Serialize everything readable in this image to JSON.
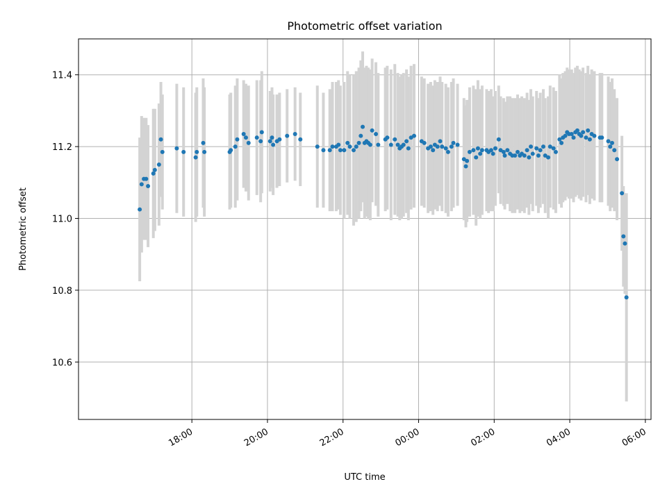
{
  "chart_data": {
    "type": "scatter",
    "title": "Photometric offset variation",
    "xlabel": "UTC time",
    "ylabel": "Photometric offset",
    "x_axis": {
      "kind": "time",
      "tick_labels": [
        "18:00",
        "20:00",
        "22:00",
        "00:00",
        "02:00",
        "04:00",
        "06:00"
      ],
      "tick_hours": [
        18,
        20,
        22,
        24,
        26,
        28,
        30
      ],
      "xlim_hours": [
        15.0,
        30.15
      ]
    },
    "y_axis": {
      "tick_labels": [
        "10.6",
        "10.8",
        "11.0",
        "11.2",
        "11.4"
      ],
      "ticks": [
        10.6,
        10.8,
        11.0,
        11.2,
        11.4
      ],
      "ylim": [
        10.44,
        11.5
      ]
    },
    "grid": true,
    "colors": {
      "points": "#1f77b4",
      "errorbars": "#d3d3d3",
      "grid": "#b0b0b0"
    },
    "series": [
      {
        "x": [
          16.62,
          16.67,
          16.73,
          16.79,
          16.84,
          16.98,
          17.02,
          17.13,
          17.18,
          17.22,
          17.6,
          17.78,
          18.1,
          18.13,
          18.3,
          18.33,
          19.0,
          19.03,
          19.15,
          19.2,
          19.37,
          19.43,
          19.5,
          19.72,
          19.82,
          19.85,
          20.07,
          20.12,
          20.15,
          20.25,
          20.32,
          20.52,
          20.73,
          20.87,
          21.32,
          21.48,
          21.65,
          21.72,
          21.82,
          21.88,
          21.93,
          22.03,
          22.12,
          22.18,
          22.28,
          22.35,
          22.42,
          22.47,
          22.52,
          22.57,
          22.62,
          22.67,
          22.72,
          22.77,
          22.87,
          22.93,
          23.12,
          23.17,
          23.27,
          23.37,
          23.45,
          23.5,
          23.55,
          23.6,
          23.68,
          23.73,
          23.8,
          23.88,
          24.08,
          24.15,
          24.25,
          24.32,
          24.38,
          24.43,
          24.5,
          24.57,
          24.62,
          24.72,
          24.78,
          24.87,
          24.92,
          25.03,
          25.2,
          25.25,
          25.28,
          25.35,
          25.45,
          25.52,
          25.57,
          25.63,
          25.68,
          25.8,
          25.85,
          25.92,
          25.97,
          26.03,
          26.12,
          26.17,
          26.25,
          26.28,
          26.35,
          26.42,
          26.48,
          26.55,
          26.62,
          26.68,
          26.73,
          26.8,
          26.87,
          26.92,
          26.97,
          27.02,
          27.12,
          27.17,
          27.22,
          27.3,
          27.35,
          27.43,
          27.48,
          27.57,
          27.63,
          27.73,
          27.78,
          27.82,
          27.88,
          27.93,
          27.98,
          28.05,
          28.1,
          28.15,
          28.2,
          28.25,
          28.3,
          28.35,
          28.43,
          28.48,
          28.53,
          28.58,
          28.65,
          28.8,
          28.85,
          29.02,
          29.07,
          29.12,
          29.18,
          29.25,
          29.38,
          29.42,
          29.46,
          29.5
        ],
        "y": [
          11.025,
          11.095,
          11.11,
          11.11,
          11.09,
          11.125,
          11.135,
          11.15,
          11.22,
          11.185,
          11.195,
          11.185,
          11.17,
          11.185,
          11.21,
          11.185,
          11.185,
          11.19,
          11.2,
          11.22,
          11.235,
          11.225,
          11.21,
          11.225,
          11.215,
          11.24,
          11.215,
          11.225,
          11.205,
          11.215,
          11.22,
          11.23,
          11.235,
          11.22,
          11.2,
          11.19,
          11.19,
          11.2,
          11.2,
          11.205,
          11.19,
          11.19,
          11.21,
          11.2,
          11.19,
          11.2,
          11.21,
          11.23,
          11.255,
          11.21,
          11.215,
          11.21,
          11.205,
          11.245,
          11.235,
          11.205,
          11.22,
          11.225,
          11.205,
          11.22,
          11.205,
          11.195,
          11.2,
          11.205,
          11.215,
          11.195,
          11.225,
          11.23,
          11.215,
          11.21,
          11.195,
          11.2,
          11.19,
          11.205,
          11.2,
          11.215,
          11.2,
          11.195,
          11.185,
          11.2,
          11.21,
          11.205,
          11.165,
          11.145,
          11.16,
          11.185,
          11.19,
          11.17,
          11.195,
          11.18,
          11.19,
          11.19,
          11.185,
          11.19,
          11.18,
          11.195,
          11.22,
          11.19,
          11.185,
          11.175,
          11.19,
          11.18,
          11.175,
          11.175,
          11.185,
          11.175,
          11.18,
          11.175,
          11.19,
          11.17,
          11.2,
          11.18,
          11.195,
          11.175,
          11.19,
          11.2,
          11.175,
          11.17,
          11.2,
          11.195,
          11.185,
          11.22,
          11.21,
          11.225,
          11.23,
          11.24,
          11.235,
          11.235,
          11.225,
          11.24,
          11.245,
          11.235,
          11.23,
          11.24,
          11.225,
          11.245,
          11.22,
          11.235,
          11.23,
          11.225,
          11.225,
          11.215,
          11.2,
          11.21,
          11.19,
          11.165,
          11.07,
          10.95,
          10.93,
          10.78
        ],
        "err": [
          0.2,
          0.19,
          0.17,
          0.17,
          0.17,
          0.18,
          0.17,
          0.17,
          0.16,
          0.16,
          0.18,
          0.18,
          0.18,
          0.18,
          0.18,
          0.18,
          0.16,
          0.16,
          0.17,
          0.17,
          0.15,
          0.15,
          0.16,
          0.16,
          0.17,
          0.17,
          0.14,
          0.14,
          0.14,
          0.13,
          0.13,
          0.13,
          0.13,
          0.13,
          0.17,
          0.16,
          0.17,
          0.18,
          0.18,
          0.18,
          0.18,
          0.19,
          0.2,
          0.2,
          0.21,
          0.21,
          0.21,
          0.21,
          0.21,
          0.21,
          0.21,
          0.21,
          0.21,
          0.2,
          0.2,
          0.2,
          0.2,
          0.2,
          0.21,
          0.21,
          0.2,
          0.2,
          0.2,
          0.2,
          0.2,
          0.2,
          0.2,
          0.2,
          0.18,
          0.18,
          0.18,
          0.18,
          0.18,
          0.18,
          0.18,
          0.18,
          0.18,
          0.18,
          0.18,
          0.18,
          0.18,
          0.17,
          0.17,
          0.17,
          0.17,
          0.18,
          0.18,
          0.19,
          0.19,
          0.18,
          0.18,
          0.17,
          0.17,
          0.17,
          0.16,
          0.16,
          0.15,
          0.15,
          0.15,
          0.15,
          0.15,
          0.16,
          0.16,
          0.16,
          0.16,
          0.16,
          0.16,
          0.16,
          0.16,
          0.16,
          0.16,
          0.16,
          0.16,
          0.16,
          0.16,
          0.16,
          0.16,
          0.17,
          0.17,
          0.17,
          0.17,
          0.18,
          0.18,
          0.18,
          0.18,
          0.18,
          0.18,
          0.18,
          0.18,
          0.18,
          0.18,
          0.18,
          0.18,
          0.18,
          0.18,
          0.18,
          0.18,
          0.18,
          0.18,
          0.18,
          0.18,
          0.18,
          0.18,
          0.18,
          0.17,
          0.17,
          0.16,
          0.14,
          0.14,
          0.29
        ]
      }
    ]
  }
}
